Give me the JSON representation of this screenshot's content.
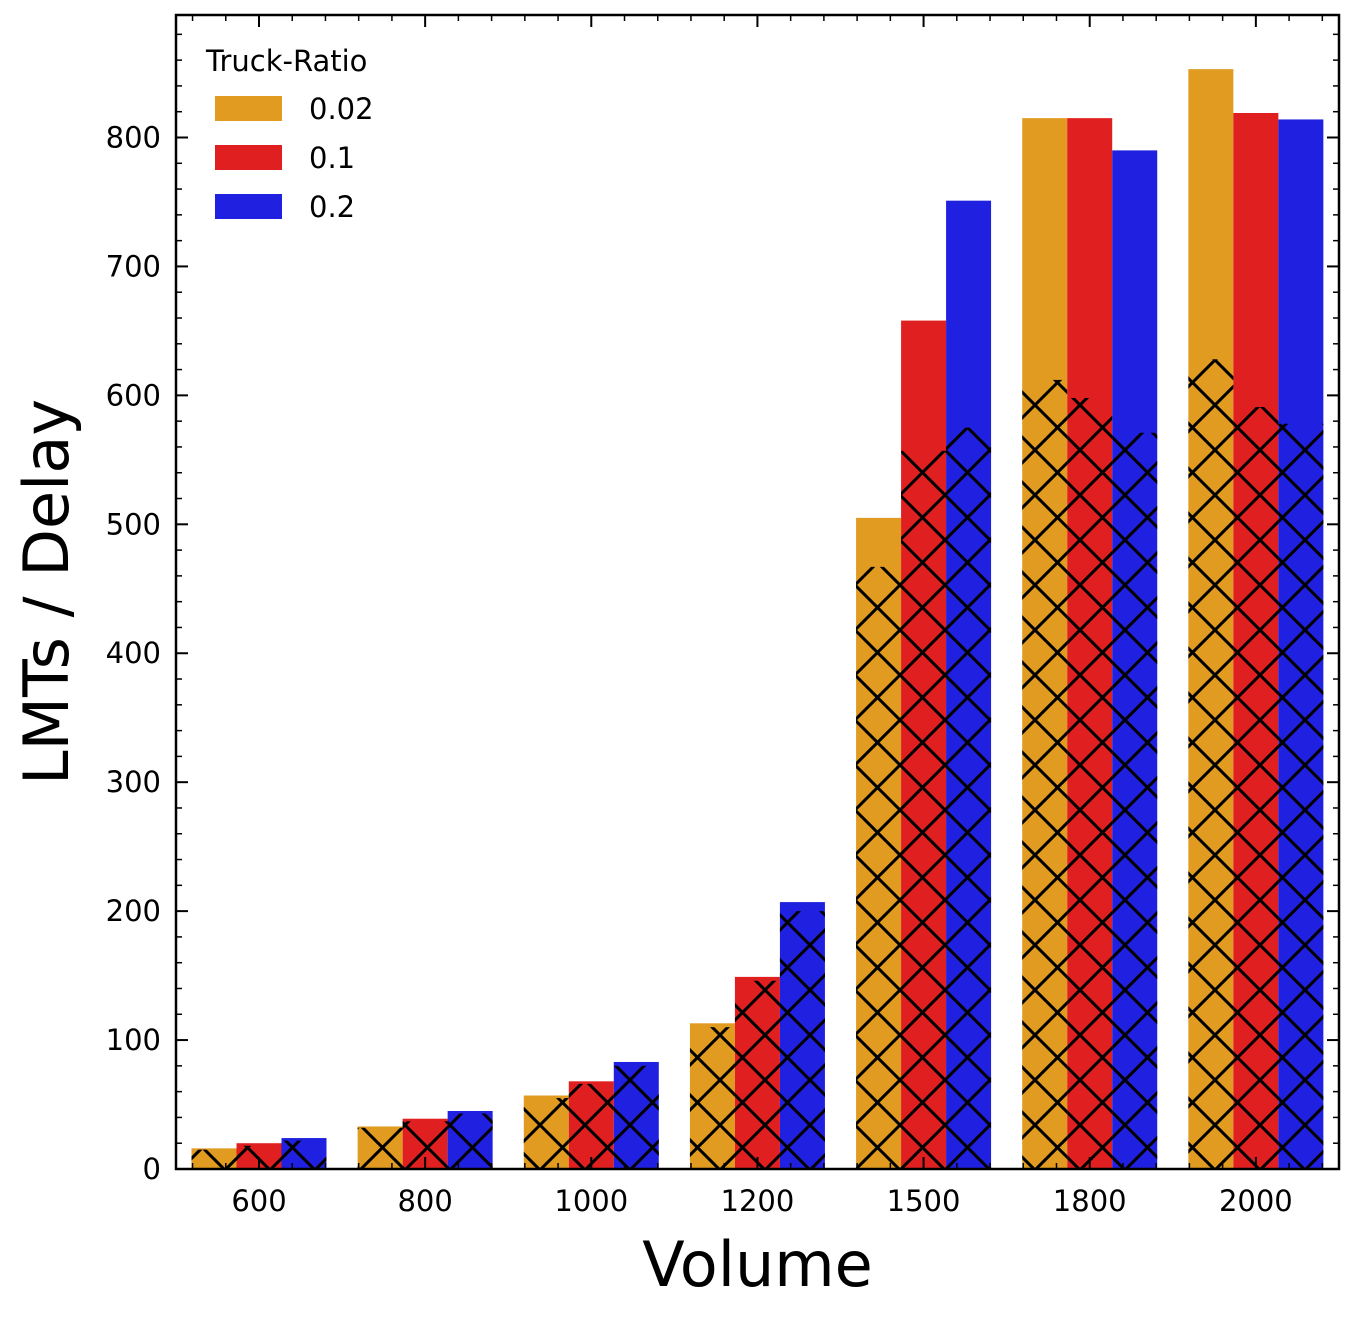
{
  "chart_data": {
    "type": "bar",
    "title": "",
    "xlabel": "Volume",
    "ylabel": "LMTs / Delay",
    "categories": [
      "600",
      "800",
      "1000",
      "1200",
      "1500",
      "1800",
      "2000"
    ],
    "ylim": [
      0,
      895
    ],
    "yticks": [
      0,
      100,
      200,
      300,
      400,
      500,
      600,
      700,
      800
    ],
    "legend": {
      "title": "Truck-Ratio",
      "placement": "top-left"
    },
    "grid": false,
    "series": [
      {
        "name": "0.02",
        "color": "#e09b20",
        "values": [
          16,
          33,
          57,
          113,
          505,
          815,
          853
        ],
        "hatched_values": [
          15,
          32,
          55,
          110,
          467,
          612,
          628
        ]
      },
      {
        "name": "0.1",
        "color": "#e02020",
        "values": [
          20,
          39,
          68,
          149,
          658,
          815,
          819
        ],
        "hatched_values": [
          18,
          37,
          66,
          146,
          557,
          598,
          591
        ]
      },
      {
        "name": "0.2",
        "color": "#2020e0",
        "values": [
          24,
          45,
          83,
          207,
          751,
          790,
          814
        ],
        "hatched_values": [
          22,
          43,
          80,
          200,
          575,
          571,
          578
        ]
      }
    ],
    "notes_hatched_overlay": "Cross-hatched lower segment of each bar"
  }
}
